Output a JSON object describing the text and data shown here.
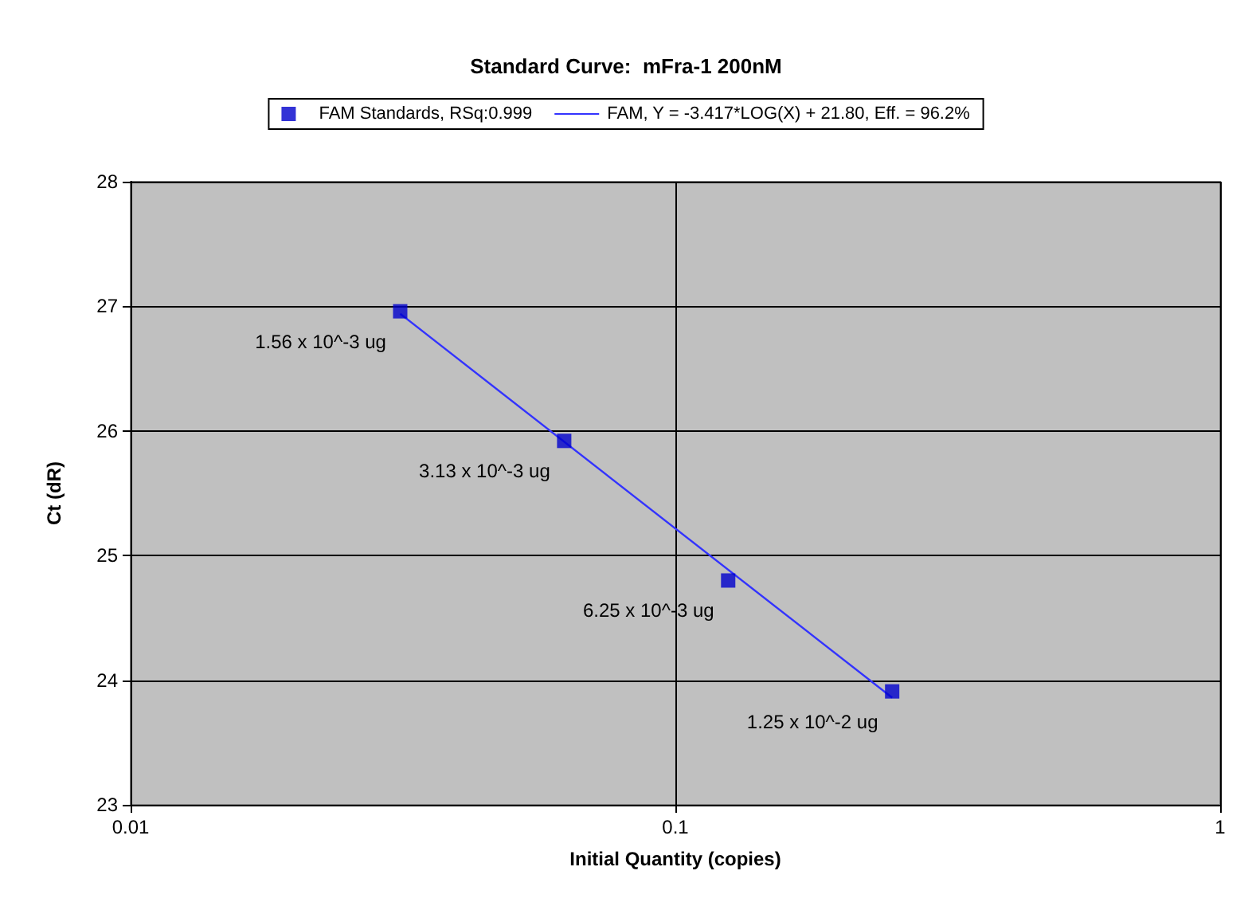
{
  "chart_data": {
    "type": "scatter",
    "title": "Standard Curve:  mFra-1 200nM",
    "xlabel": "Initial Quantity (copies)",
    "ylabel": "Ct (dR)",
    "series": [
      {
        "name": "FAM Standards, RSq:0.999",
        "type": "scatter",
        "color": "#0000cc",
        "marker": "square",
        "x": [
          0.03125,
          0.0625,
          0.125,
          0.25
        ],
        "values": [
          26.96,
          25.92,
          24.8,
          23.91
        ]
      },
      {
        "name": "FAM, Y = -3.417*LOG(X) + 21.80, Eff. = 96.2%",
        "type": "line",
        "color": "#3333ff",
        "marker": "none",
        "line_style": "solid",
        "x": [
          0.03125,
          0.25
        ],
        "values": [
          26.94,
          23.86
        ]
      }
    ],
    "annotations": [
      {
        "text": "1.56 x 10^-3 ug",
        "x": 0.03125,
        "y": 26.96
      },
      {
        "text": "3.13 x 10^-3 ug",
        "x": 0.0625,
        "y": 25.92
      },
      {
        "text": "6.25 x 10^-3 ug",
        "x": 0.125,
        "y": 24.8
      },
      {
        "text": "1.25 x 10^-2 ug",
        "x": 0.25,
        "y": 23.91
      }
    ],
    "log": "x",
    "xlim": [
      0.01,
      1
    ],
    "xticks": [
      0.01,
      0.1,
      1
    ],
    "ylim": [
      23,
      28
    ],
    "yticks": [
      23,
      24,
      25,
      26,
      27,
      28
    ],
    "grid": true,
    "legend": "top"
  }
}
